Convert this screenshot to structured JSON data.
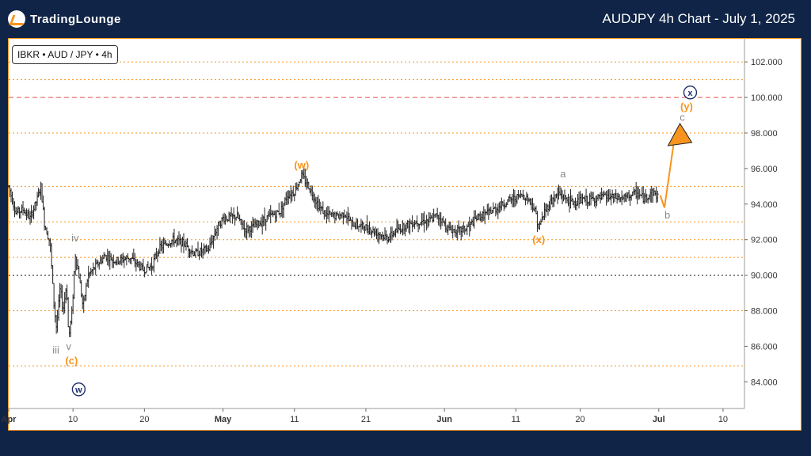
{
  "header": {
    "logo_text": "TradingLounge",
    "chart_title": "AUDJPY 4h Chart - July 1, 2025",
    "logo_color": "#f7941d"
  },
  "symbol_badge": "IBKR • AUD / JPY • 4h",
  "chart_data": {
    "type": "line",
    "title": "AUDJPY 4h Chart - July 1, 2025",
    "style": "ohlc-bars",
    "ylim": [
      82.5,
      103.3
    ],
    "y_ticks": [
      "84.000",
      "86.000",
      "88.000",
      "90.000",
      "92.000",
      "94.000",
      "96.000",
      "98.000",
      "100.000",
      "102.000"
    ],
    "x_ticks": [
      {
        "label": "Apr",
        "d": 1
      },
      {
        "label": "10",
        "d": 10
      },
      {
        "label": "20",
        "d": 20
      },
      {
        "label": "May",
        "d": 31
      },
      {
        "label": "11",
        "d": 41
      },
      {
        "label": "21",
        "d": 51
      },
      {
        "label": "Jun",
        "d": 62
      },
      {
        "label": "11",
        "d": 72
      },
      {
        "label": "20",
        "d": 81
      },
      {
        "label": "Jul",
        "d": 92
      },
      {
        "label": "10",
        "d": 101
      }
    ],
    "xlim": [
      1,
      104
    ],
    "price_anchors": [
      [
        1,
        95.0
      ],
      [
        2,
        93.5
      ],
      [
        3,
        93.7
      ],
      [
        4,
        93.2
      ],
      [
        5,
        94.3
      ],
      [
        5.5,
        95.0
      ],
      [
        6,
        92.9
      ],
      [
        6.8,
        91.8
      ],
      [
        7.3,
        88.5
      ],
      [
        7.7,
        87.0
      ],
      [
        8.2,
        89.3
      ],
      [
        8.6,
        88.0
      ],
      [
        9.1,
        89.5
      ],
      [
        9.4,
        86.4
      ],
      [
        9.9,
        88.1
      ],
      [
        10.3,
        91.2
      ],
      [
        10.9,
        89.8
      ],
      [
        11.4,
        88.2
      ],
      [
        12.1,
        90.0
      ],
      [
        13.2,
        90.5
      ],
      [
        14.5,
        91.1
      ],
      [
        16,
        90.8
      ],
      [
        18,
        91.0
      ],
      [
        19.8,
        90.3
      ],
      [
        21,
        90.5
      ],
      [
        22,
        91.5
      ],
      [
        24,
        92.0
      ],
      [
        25.5,
        91.8
      ],
      [
        27,
        91.2
      ],
      [
        29,
        91.5
      ],
      [
        30.3,
        92.8
      ],
      [
        31,
        93.2
      ],
      [
        33,
        93.3
      ],
      [
        34,
        92.6
      ],
      [
        35.3,
        92.7
      ],
      [
        37,
        93.2
      ],
      [
        39,
        93.6
      ],
      [
        40,
        94.5
      ],
      [
        41,
        94.7
      ],
      [
        42,
        95.6
      ],
      [
        43,
        95.0
      ],
      [
        44.5,
        93.8
      ],
      [
        45.5,
        93.4
      ],
      [
        47,
        93.3
      ],
      [
        48,
        93.5
      ],
      [
        49,
        92.9
      ],
      [
        51,
        92.7
      ],
      [
        52.5,
        92.4
      ],
      [
        54,
        92.1
      ],
      [
        55,
        92.4
      ],
      [
        56.5,
        92.8
      ],
      [
        58,
        93.0
      ],
      [
        60,
        93.1
      ],
      [
        61,
        93.4
      ],
      [
        62.5,
        92.6
      ],
      [
        64,
        92.5
      ],
      [
        65,
        92.6
      ],
      [
        66.5,
        93.2
      ],
      [
        68,
        93.5
      ],
      [
        69.5,
        93.8
      ],
      [
        71,
        94.2
      ],
      [
        73,
        94.5
      ],
      [
        74,
        94.2
      ],
      [
        74.8,
        93.5
      ],
      [
        75.2,
        92.6
      ],
      [
        76,
        93.6
      ],
      [
        77,
        94.2
      ],
      [
        78,
        94.6
      ],
      [
        79,
        94.3
      ],
      [
        80,
        94.1
      ],
      [
        81.5,
        94.2
      ],
      [
        83,
        94.3
      ],
      [
        85,
        94.4
      ],
      [
        87,
        94.3
      ],
      [
        88,
        94.5
      ],
      [
        89,
        94.6
      ],
      [
        90,
        94.3
      ],
      [
        91,
        94.7
      ],
      [
        92,
        94.4
      ]
    ],
    "projection": [
      [
        92.2,
        94.5
      ],
      [
        92.8,
        93.8
      ],
      [
        94.3,
        98.0
      ]
    ],
    "levels": [
      {
        "y": 84.9,
        "style": "dotted",
        "color": "#f7941d"
      },
      {
        "y": 88.0,
        "style": "dotted",
        "color": "#f7941d"
      },
      {
        "y": 90.0,
        "style": "dotted",
        "color": "#111111"
      },
      {
        "y": 91.0,
        "style": "dotted",
        "color": "#f7941d"
      },
      {
        "y": 92.0,
        "style": "dotted",
        "color": "#f7941d"
      },
      {
        "y": 93.0,
        "style": "dotted",
        "color": "#f7941d"
      },
      {
        "y": 95.0,
        "style": "dotted",
        "color": "#f7941d"
      },
      {
        "y": 98.0,
        "style": "dotted",
        "color": "#f7941d"
      },
      {
        "y": 100.0,
        "style": "dashed",
        "color": "#e05050"
      },
      {
        "y": 101.0,
        "style": "dotted",
        "color": "#f7941d"
      },
      {
        "y": 102.0,
        "style": "dotted",
        "color": "#f7941d"
      }
    ],
    "wave_labels": [
      {
        "text": "iv",
        "d": 10.3,
        "y": 91.9,
        "color": "#888888",
        "circle": false
      },
      {
        "text": "iii",
        "d": 7.6,
        "y": 85.6,
        "color": "#888888",
        "circle": false
      },
      {
        "text": "v",
        "d": 9.4,
        "y": 85.8,
        "color": "#888888",
        "circle": false
      },
      {
        "text": "(c)",
        "d": 9.8,
        "y": 85.0,
        "color": "#f7941d",
        "circle": false
      },
      {
        "text": "w",
        "d": 10.8,
        "y": 83.4,
        "color": "#1f2f6e",
        "circle": true
      },
      {
        "text": "(w)",
        "d": 42.0,
        "y": 96.0,
        "color": "#f7941d",
        "circle": false
      },
      {
        "text": "(x)",
        "d": 75.2,
        "y": 91.8,
        "color": "#f7941d",
        "circle": false
      },
      {
        "text": "a",
        "d": 78.6,
        "y": 95.5,
        "color": "#888888",
        "circle": false
      },
      {
        "text": "b",
        "d": 93.2,
        "y": 93.2,
        "color": "#888888",
        "circle": false
      },
      {
        "text": "c",
        "d": 95.3,
        "y": 98.7,
        "color": "#888888",
        "circle": false
      },
      {
        "text": "(y)",
        "d": 95.9,
        "y": 99.3,
        "color": "#f7941d",
        "circle": false
      },
      {
        "text": "x",
        "d": 96.4,
        "y": 100.1,
        "color": "#1f2f6e",
        "circle": true
      }
    ],
    "colors": {
      "bars": "#222222",
      "projection": "#f7941d",
      "grid_orange": "#f7941d"
    }
  }
}
